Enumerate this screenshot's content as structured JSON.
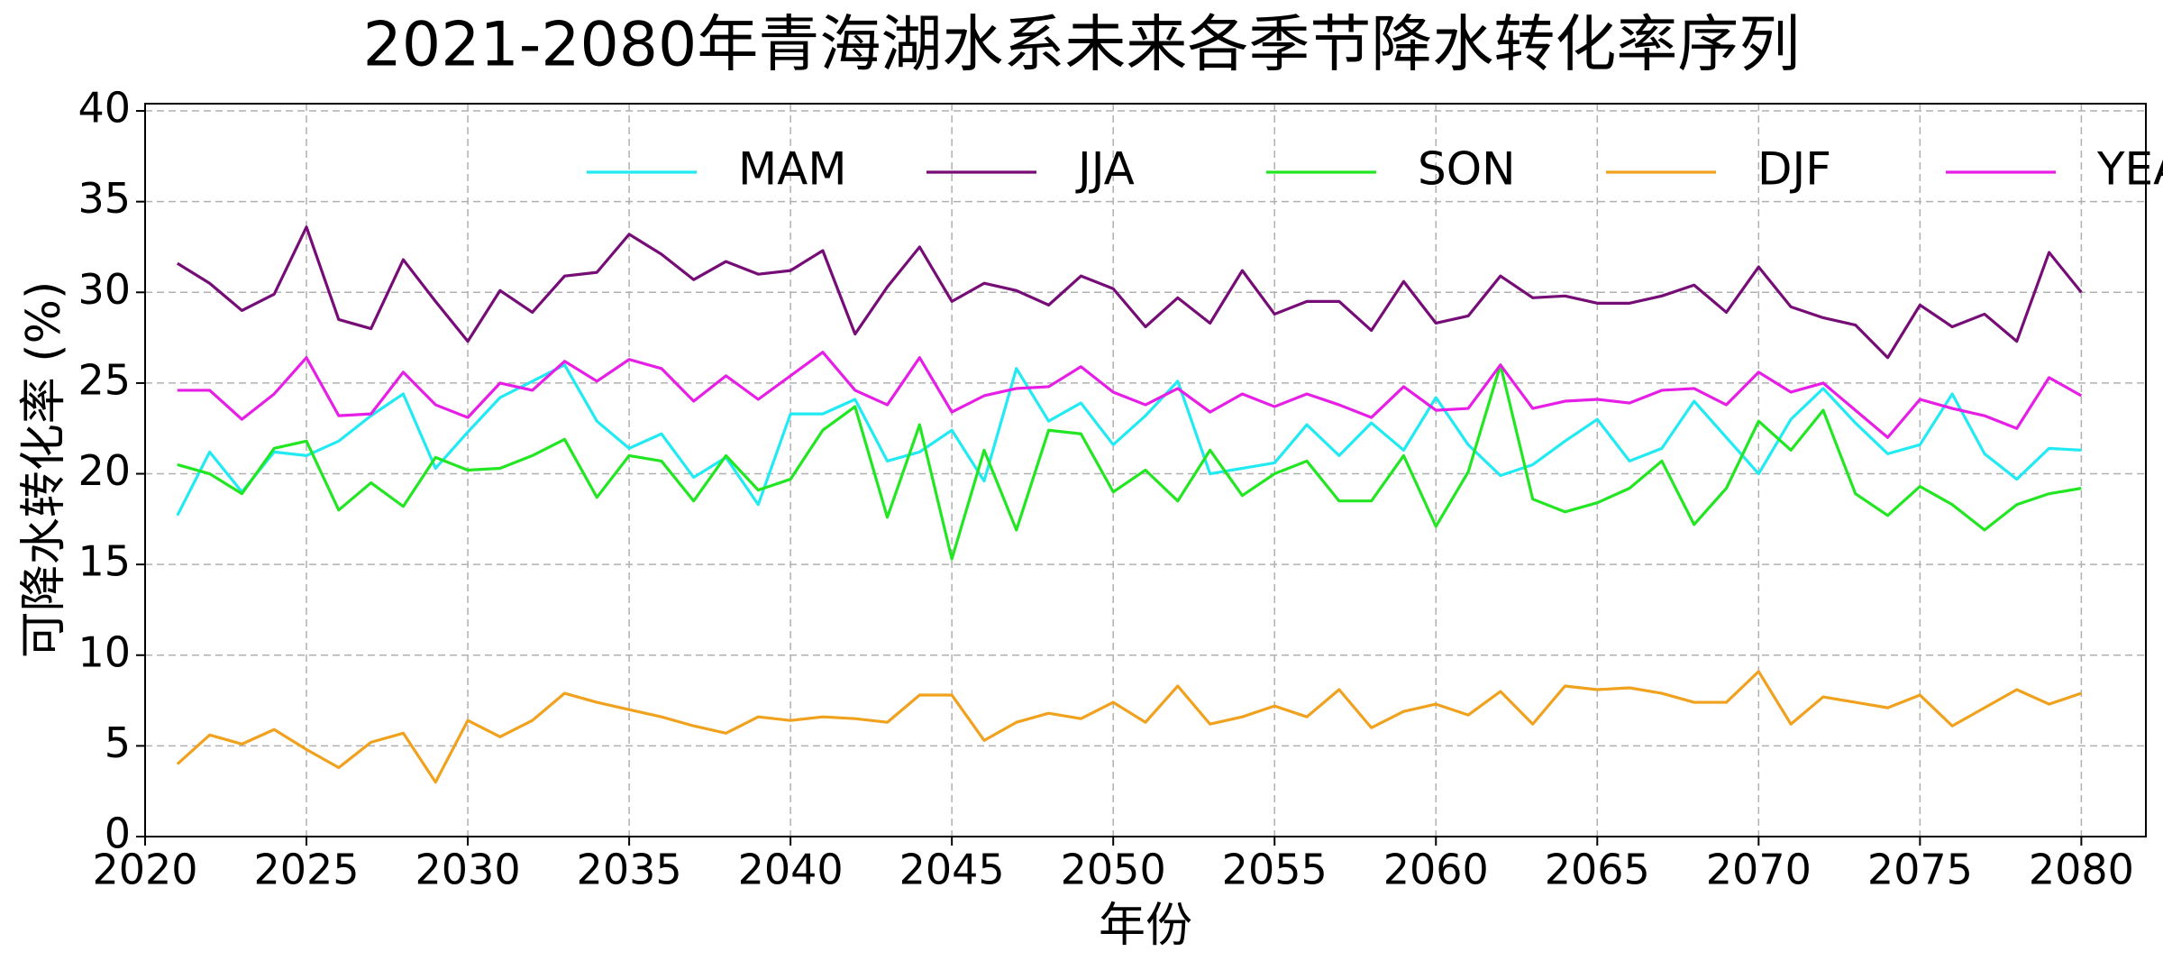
{
  "chart_data": {
    "type": "line",
    "title": "2021-2080年青海湖水系未来各季节降水转化率序列",
    "x_label": "年份",
    "y_label": "可降水转化率 (%)",
    "x": [
      2021,
      2022,
      2023,
      2024,
      2025,
      2026,
      2027,
      2028,
      2029,
      2030,
      2031,
      2032,
      2033,
      2034,
      2035,
      2036,
      2037,
      2038,
      2039,
      2040,
      2041,
      2042,
      2043,
      2044,
      2045,
      2046,
      2047,
      2048,
      2049,
      2050,
      2051,
      2052,
      2053,
      2054,
      2055,
      2056,
      2057,
      2058,
      2059,
      2060,
      2061,
      2062,
      2063,
      2064,
      2065,
      2066,
      2067,
      2068,
      2069,
      2070,
      2071,
      2072,
      2073,
      2074,
      2075,
      2076,
      2077,
      2078,
      2079,
      2080
    ],
    "series": [
      {
        "name": "MAM",
        "color": "#22eaf2",
        "values": [
          17.7,
          21.2,
          19.0,
          21.2,
          21.0,
          21.8,
          23.2,
          24.4,
          20.3,
          22.3,
          24.2,
          25.1,
          26.0,
          22.9,
          21.4,
          22.2,
          19.8,
          20.9,
          18.3,
          23.3,
          23.3,
          24.1,
          20.7,
          21.2,
          22.4,
          19.6,
          25.8,
          22.9,
          23.9,
          21.6,
          23.2,
          25.1,
          20.0,
          20.3,
          20.6,
          22.7,
          21.0,
          22.8,
          21.3,
          24.2,
          21.6,
          19.9,
          20.5,
          21.8,
          23.0,
          20.7,
          21.4,
          24.0,
          22.0,
          20.0,
          23.0,
          24.7,
          22.8,
          21.1,
          21.6,
          24.4,
          21.1,
          19.7,
          21.4,
          21.3
        ]
      },
      {
        "name": "JJA",
        "color": "#760c76",
        "values": [
          31.6,
          30.5,
          29.0,
          29.9,
          33.6,
          28.5,
          28.0,
          31.8,
          29.5,
          27.3,
          30.1,
          28.9,
          30.9,
          31.1,
          33.2,
          32.1,
          30.7,
          31.7,
          31.0,
          31.2,
          32.3,
          27.7,
          30.3,
          32.5,
          29.5,
          30.5,
          30.1,
          29.3,
          30.9,
          30.2,
          28.1,
          29.7,
          28.3,
          31.2,
          28.8,
          29.5,
          29.5,
          27.9,
          30.6,
          28.3,
          28.7,
          30.9,
          29.7,
          29.8,
          29.4,
          29.4,
          29.8,
          30.4,
          28.9,
          31.4,
          29.2,
          28.6,
          28.2,
          26.4,
          29.3,
          28.1,
          28.8,
          27.3,
          32.2,
          30.0
        ]
      },
      {
        "name": "SON",
        "color": "#22e622",
        "values": [
          20.5,
          20.0,
          18.9,
          21.4,
          21.8,
          18.0,
          19.5,
          18.2,
          20.9,
          20.2,
          20.3,
          21.0,
          21.9,
          18.7,
          21.0,
          20.7,
          18.5,
          21.0,
          19.1,
          19.7,
          22.4,
          23.7,
          17.6,
          22.7,
          15.3,
          21.3,
          16.9,
          22.4,
          22.2,
          19.0,
          20.2,
          18.5,
          21.3,
          18.8,
          20.0,
          20.7,
          18.5,
          18.5,
          21.0,
          17.1,
          20.1,
          26.0,
          18.6,
          17.9,
          18.4,
          19.2,
          20.7,
          17.2,
          19.2,
          22.9,
          21.3,
          23.5,
          18.9,
          17.7,
          19.3,
          18.3,
          16.9,
          18.3,
          18.9,
          19.2
        ]
      },
      {
        "name": "DJF",
        "color": "#f0a21e",
        "values": [
          4.0,
          5.6,
          5.1,
          5.9,
          4.8,
          3.8,
          5.2,
          5.7,
          3.0,
          6.4,
          5.5,
          6.4,
          7.9,
          7.4,
          7.0,
          6.6,
          6.1,
          5.7,
          6.6,
          6.4,
          6.6,
          6.5,
          6.3,
          7.8,
          7.8,
          5.3,
          6.3,
          6.8,
          6.5,
          7.4,
          6.3,
          8.3,
          6.2,
          6.6,
          7.2,
          6.6,
          8.1,
          6.0,
          6.9,
          7.3,
          6.7,
          8.0,
          6.2,
          8.3,
          8.1,
          8.2,
          7.9,
          7.4,
          7.4,
          9.1,
          6.2,
          7.7,
          7.4,
          7.1,
          7.8,
          6.1,
          7.1,
          8.1,
          7.3,
          7.9
        ]
      },
      {
        "name": "YEAR",
        "color": "#e61ee6",
        "values": [
          24.6,
          24.6,
          23.0,
          24.4,
          26.4,
          23.2,
          23.3,
          25.6,
          23.8,
          23.1,
          25.0,
          24.6,
          26.2,
          25.1,
          26.3,
          25.8,
          24.0,
          25.4,
          24.1,
          25.4,
          26.7,
          24.6,
          23.8,
          26.4,
          23.4,
          24.3,
          24.7,
          24.8,
          25.9,
          24.5,
          23.8,
          24.7,
          23.4,
          24.4,
          23.7,
          24.4,
          23.8,
          23.1,
          24.8,
          23.5,
          23.6,
          26.0,
          23.6,
          24.0,
          24.1,
          23.9,
          24.6,
          24.7,
          23.8,
          25.6,
          24.5,
          25.0,
          23.5,
          22.0,
          24.1,
          23.6,
          23.2,
          22.5,
          25.3,
          24.3
        ]
      }
    ],
    "xlim": [
      2020,
      2082
    ],
    "xticks": [
      2020,
      2025,
      2030,
      2035,
      2040,
      2045,
      2050,
      2055,
      2060,
      2065,
      2070,
      2075,
      2080
    ],
    "ylim": [
      0,
      40.4
    ],
    "yticks": [
      0,
      5,
      10,
      15,
      20,
      25,
      30,
      35,
      40
    ],
    "grid": true,
    "legend": "upper right"
  }
}
